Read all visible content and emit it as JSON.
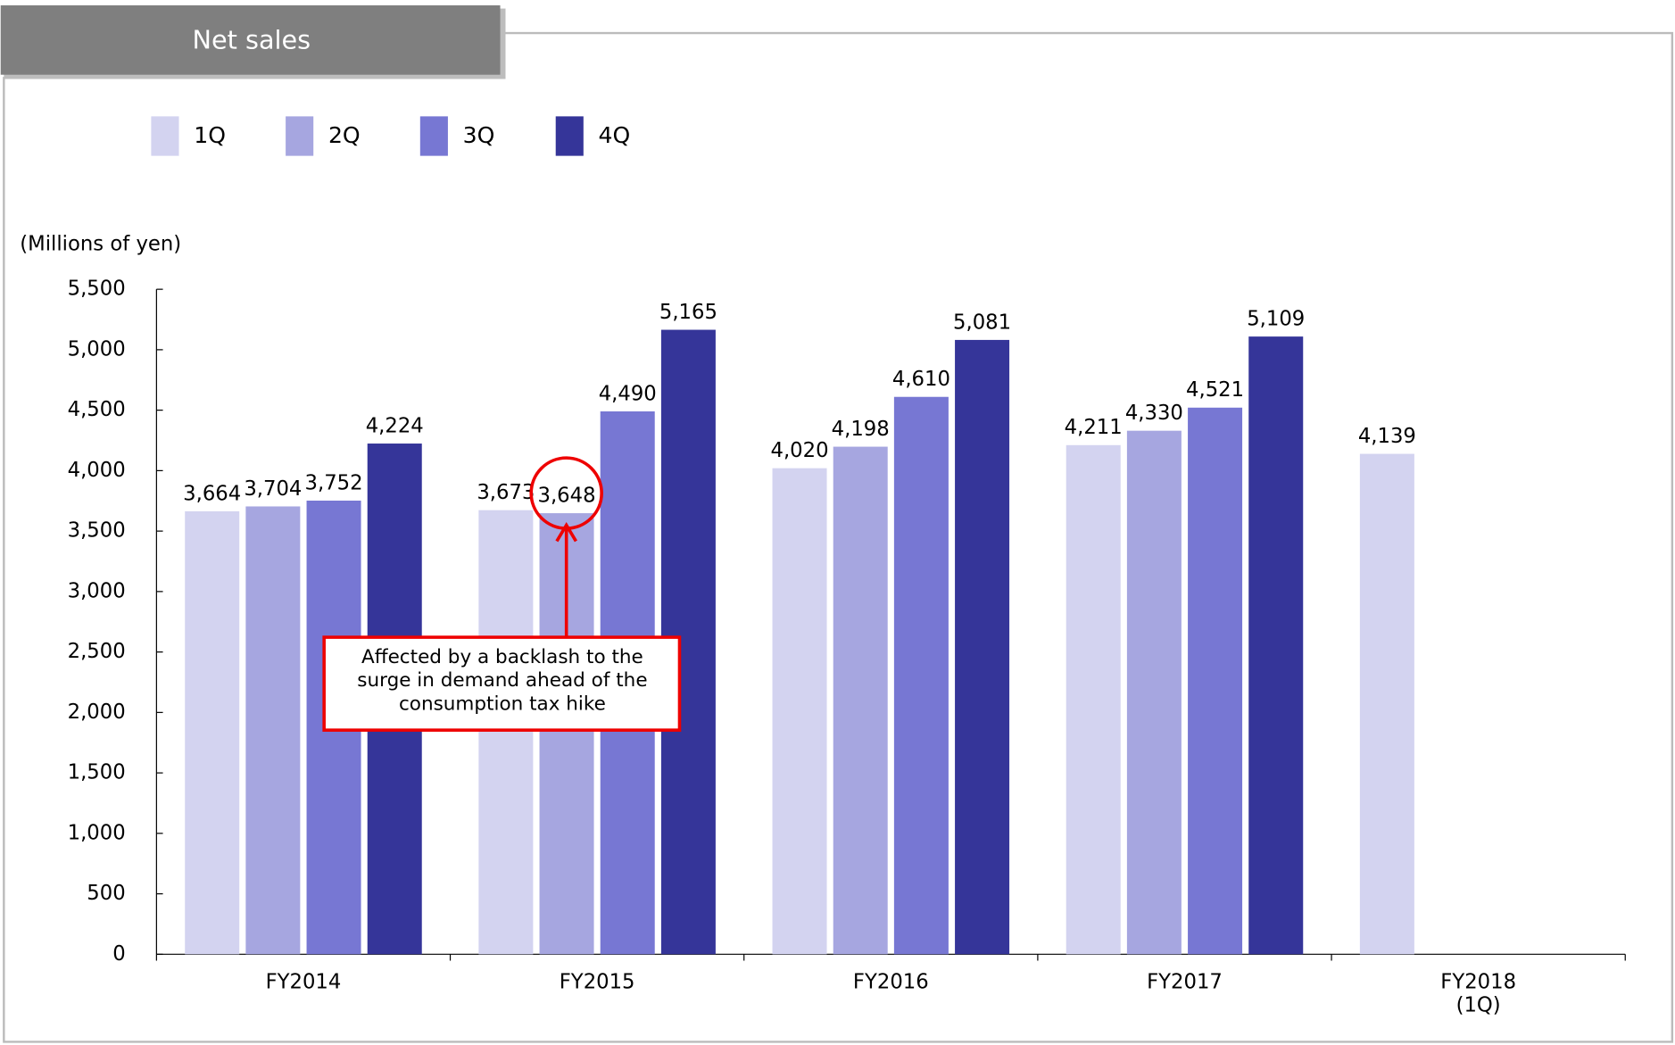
{
  "chart_data": {
    "type": "bar",
    "title": "Net sales",
    "y_axis_label": "(Millions of yen)",
    "categories": [
      "FY2014",
      "FY2015",
      "FY2016",
      "FY2017",
      "FY2018\n(1Q)"
    ],
    "series": [
      {
        "name": "1Q",
        "color": "#d3d3f0",
        "values": [
          3664,
          3673,
          4020,
          4211,
          4139
        ],
        "value_labels": [
          "3,664",
          "3,673",
          "4,020",
          "4,211",
          "4,139"
        ]
      },
      {
        "name": "2Q",
        "color": "#a6a6e0",
        "values": [
          3704,
          3648,
          4198,
          4330,
          null
        ],
        "value_labels": [
          "3,704",
          "3,648",
          "4,198",
          "4,330",
          null
        ]
      },
      {
        "name": "3Q",
        "color": "#7777d3",
        "values": [
          3752,
          4490,
          4610,
          4521,
          null
        ],
        "value_labels": [
          "3,752",
          "4,490",
          "4,610",
          "4,521",
          null
        ]
      },
      {
        "name": "4Q",
        "color": "#353599",
        "values": [
          4224,
          5165,
          5081,
          5109,
          null
        ],
        "value_labels": [
          "4,224",
          "5,165",
          "5,081",
          "5,109",
          null
        ]
      }
    ],
    "ylim": [
      0,
      5500
    ],
    "yticks": [
      0,
      500,
      {
        "value": 1000,
        "label": "1,000"
      },
      {
        "value": 1500,
        "label": "1,500"
      },
      {
        "value": 2000,
        "label": "2,000"
      },
      {
        "value": 2500,
        "label": "2,500"
      },
      {
        "value": 3000,
        "label": "3,000"
      },
      {
        "value": 3500,
        "label": "3,500"
      },
      {
        "value": 4000,
        "label": "4,000"
      },
      {
        "value": 4500,
        "label": "4,500"
      },
      {
        "value": 5000,
        "label": "5,000"
      },
      {
        "value": 5500,
        "label": "5,500"
      }
    ],
    "annotation": [
      "Affected by a backlash to the",
      "surge in demand ahead of the",
      "consumption tax hike"
    ],
    "legend": "top-left",
    "grid": false
  }
}
